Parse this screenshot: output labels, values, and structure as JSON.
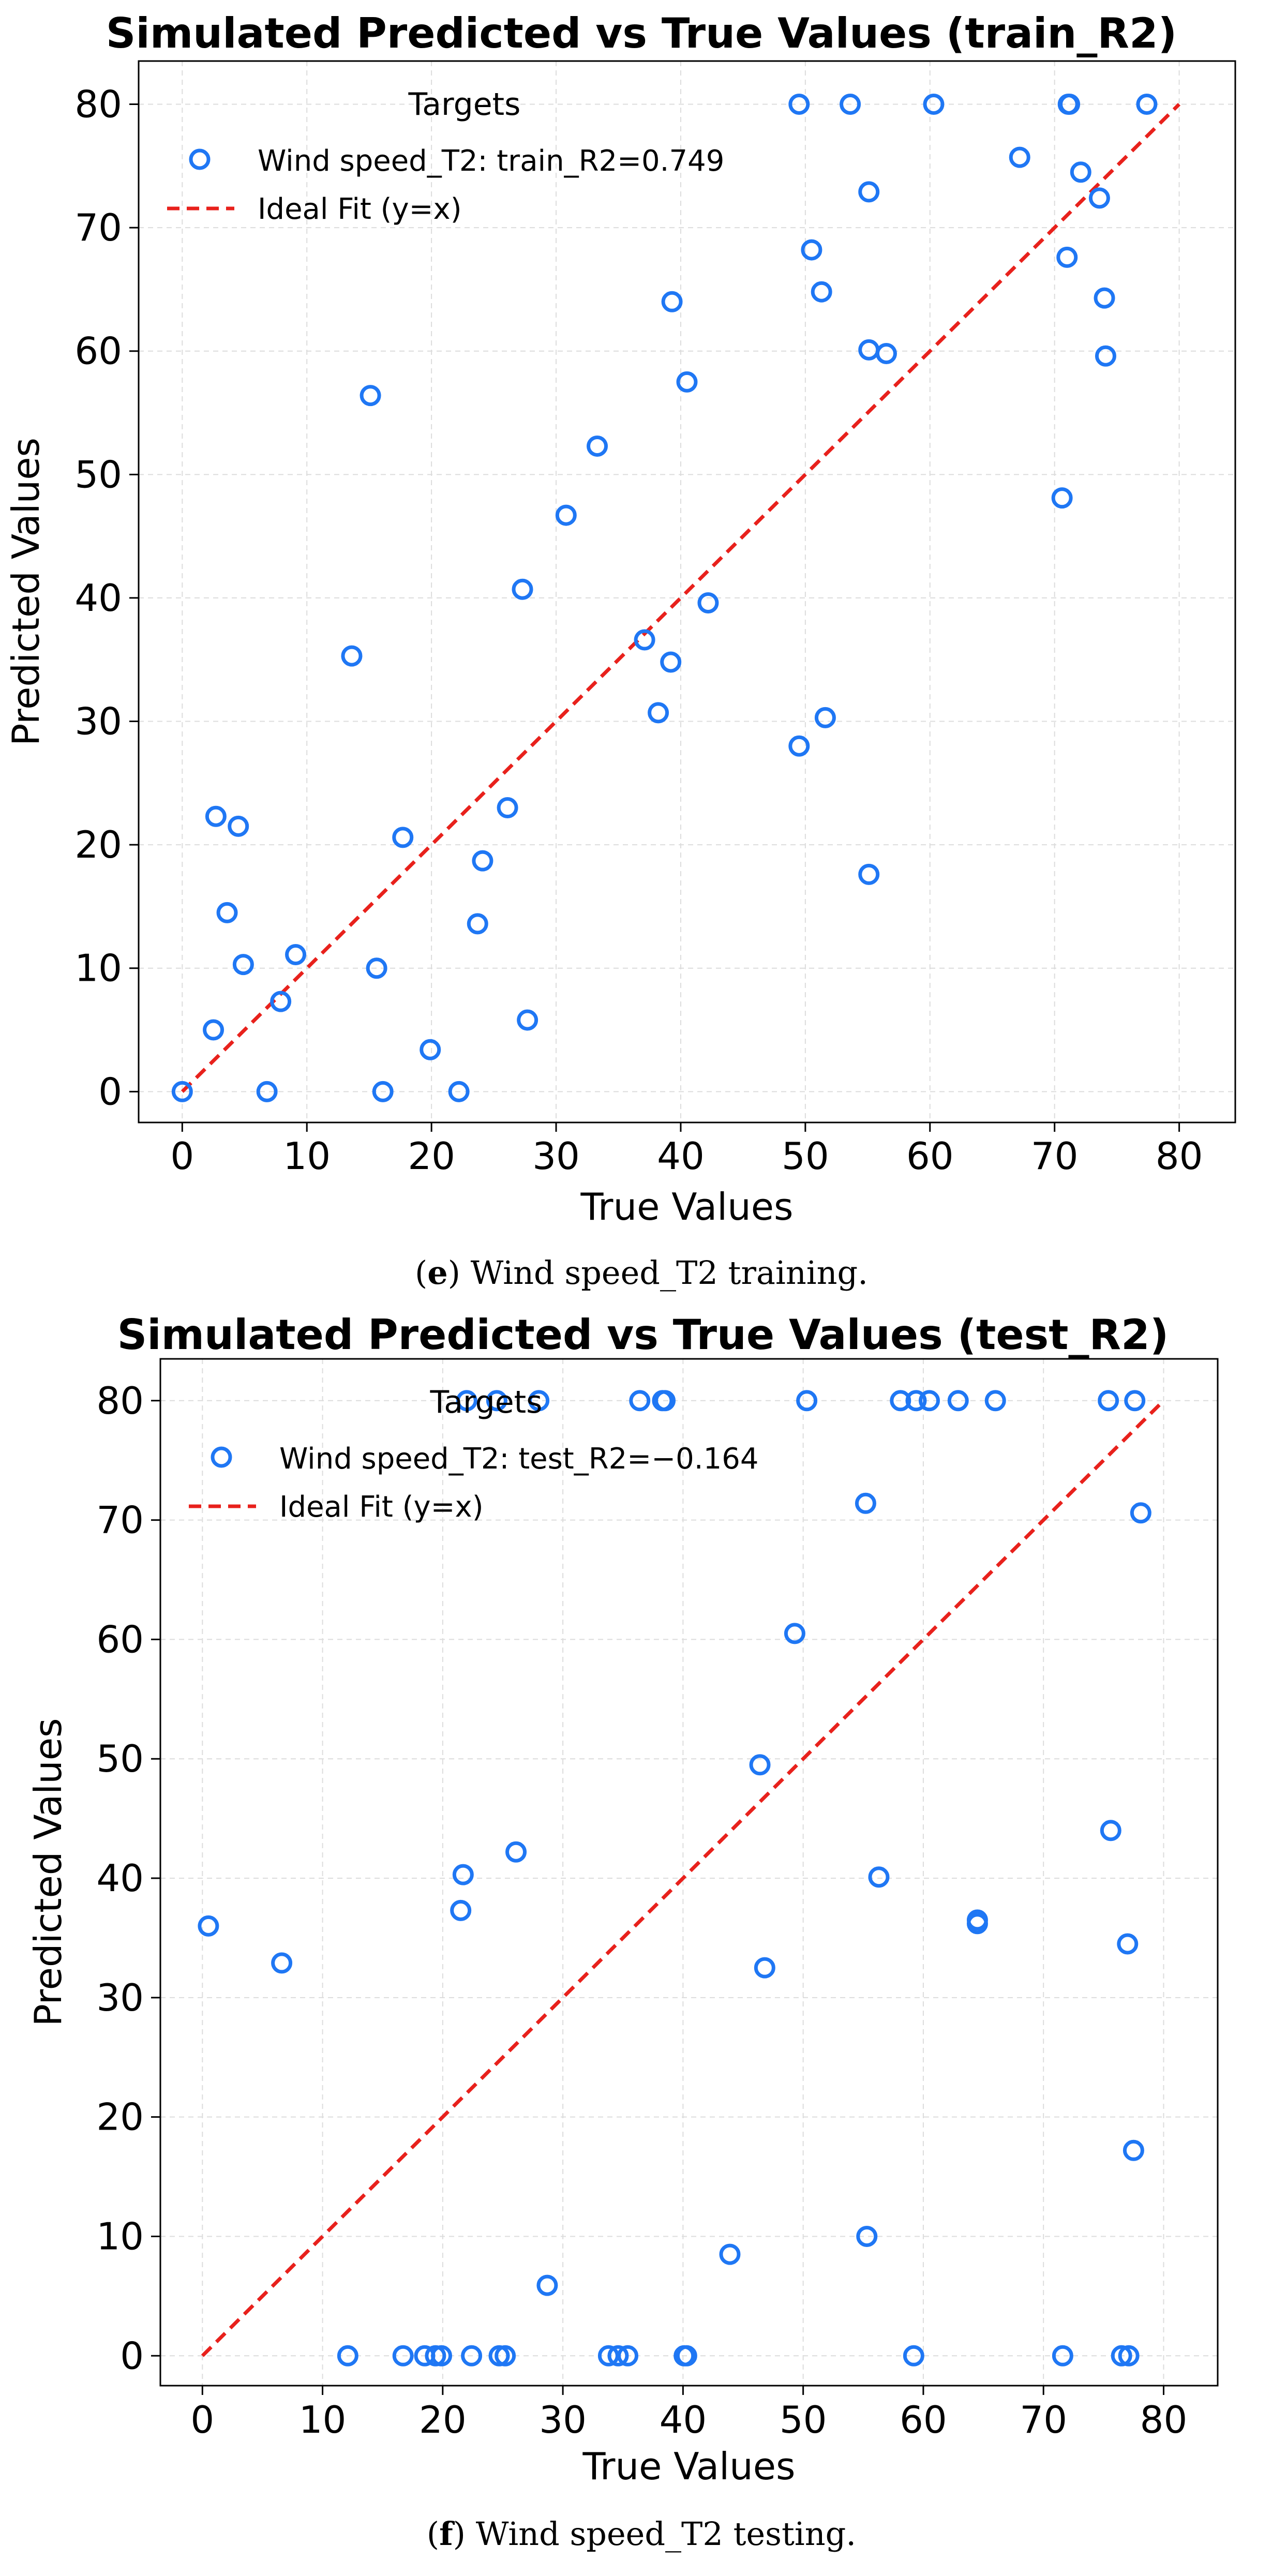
{
  "chart_data": [
    {
      "type": "scatter",
      "title": "Simulated Predicted vs True Values (train_R2)",
      "xlabel": "True Values",
      "ylabel": "Predicted Values",
      "xlim": [
        -3.5,
        84.5
      ],
      "ylim": [
        -2.5,
        83.5
      ],
      "xticks": [
        0,
        10,
        20,
        30,
        40,
        50,
        60,
        70,
        80
      ],
      "yticks": [
        0,
        10,
        20,
        30,
        40,
        50,
        60,
        70,
        80
      ],
      "grid": true,
      "legend": {
        "title": "Targets",
        "placement": "top-left",
        "entries": [
          "Wind speed_T2: train_R2=0.749",
          "Ideal Fit (y=x)"
        ]
      },
      "ideal_fit": {
        "name": "Ideal Fit (y=x)",
        "from": [
          0,
          0
        ],
        "to": [
          80,
          80
        ]
      },
      "caption_label": "e",
      "caption_text": " Wind speed_T2 training.",
      "series": [
        {
          "name": "Wind speed_T2: train_R2=0.749",
          "points": [
            [
              0,
              0
            ],
            [
              2.5,
              5
            ],
            [
              2.7,
              22.3
            ],
            [
              3.6,
              14.5
            ],
            [
              4.5,
              21.5
            ],
            [
              4.9,
              10.3
            ],
            [
              6.8,
              0
            ],
            [
              7.9,
              7.3
            ],
            [
              9.1,
              11.1
            ],
            [
              13.6,
              35.3
            ],
            [
              15.1,
              56.4
            ],
            [
              15.6,
              10
            ],
            [
              16.1,
              0
            ],
            [
              17.7,
              20.6
            ],
            [
              19.9,
              3.4
            ],
            [
              22.2,
              0
            ],
            [
              23.7,
              13.6
            ],
            [
              24.1,
              18.7
            ],
            [
              26.1,
              23
            ],
            [
              27.3,
              40.7
            ],
            [
              27.7,
              5.8
            ],
            [
              30.8,
              46.7
            ],
            [
              33.3,
              52.3
            ],
            [
              37.1,
              36.6
            ],
            [
              38.2,
              30.7
            ],
            [
              39.2,
              34.8
            ],
            [
              39.3,
              64
            ],
            [
              40.5,
              57.5
            ],
            [
              42.2,
              39.6
            ],
            [
              49.5,
              28
            ],
            [
              49.5,
              80
            ],
            [
              50.5,
              68.2
            ],
            [
              51.3,
              64.8
            ],
            [
              51.6,
              30.3
            ],
            [
              53.6,
              80
            ],
            [
              55.1,
              72.9
            ],
            [
              55.1,
              60.1
            ],
            [
              55.1,
              17.6
            ],
            [
              56.5,
              59.8
            ],
            [
              60.3,
              80
            ],
            [
              67.2,
              75.7
            ],
            [
              70.6,
              48.1
            ],
            [
              71,
              67.6
            ],
            [
              71.1,
              80
            ],
            [
              71.2,
              80
            ],
            [
              72.1,
              74.5
            ],
            [
              73.6,
              72.4
            ],
            [
              74,
              64.3
            ],
            [
              74.1,
              59.6
            ],
            [
              77.4,
              80
            ]
          ]
        }
      ]
    },
    {
      "type": "scatter",
      "title": "Simulated Predicted vs True Values (test_R2)",
      "xlabel": "True Values",
      "ylabel": "Predicted Values",
      "xlim": [
        -3.5,
        84.5
      ],
      "ylim": [
        -2.5,
        83.5
      ],
      "xticks": [
        0,
        10,
        20,
        30,
        40,
        50,
        60,
        70,
        80
      ],
      "yticks": [
        0,
        10,
        20,
        30,
        40,
        50,
        60,
        70,
        80
      ],
      "grid": true,
      "legend": {
        "title": "Targets",
        "placement": "top-left",
        "entries": [
          "Wind speed_T2: test_R2=−0.164",
          "Ideal Fit (y=x)"
        ]
      },
      "ideal_fit": {
        "name": "Ideal Fit (y=x)",
        "from": [
          0,
          0
        ],
        "to": [
          80,
          80
        ]
      },
      "caption_label": "f",
      "caption_text": " Wind speed_T2 testing.",
      "series": [
        {
          "name": "Wind speed_T2: test_R2=−0.164",
          "points": [
            [
              0.5,
              36
            ],
            [
              6.6,
              32.9
            ],
            [
              12.1,
              0
            ],
            [
              16.7,
              0
            ],
            [
              18.5,
              0
            ],
            [
              19.4,
              0
            ],
            [
              19.9,
              0
            ],
            [
              21.5,
              37.3
            ],
            [
              21.7,
              40.3
            ],
            [
              22,
              80
            ],
            [
              22.4,
              0
            ],
            [
              24.5,
              80
            ],
            [
              24.7,
              0
            ],
            [
              25.2,
              0
            ],
            [
              26.1,
              42.2
            ],
            [
              28,
              80
            ],
            [
              28.7,
              5.9
            ],
            [
              33.8,
              0
            ],
            [
              34.6,
              0
            ],
            [
              35.4,
              0
            ],
            [
              36.4,
              80
            ],
            [
              38.3,
              80
            ],
            [
              38.5,
              80
            ],
            [
              40.1,
              0
            ],
            [
              40.3,
              0
            ],
            [
              43.9,
              8.5
            ],
            [
              46.4,
              49.5
            ],
            [
              46.8,
              32.5
            ],
            [
              49.3,
              60.5
            ],
            [
              50.3,
              80
            ],
            [
              55.2,
              71.4
            ],
            [
              55.3,
              10
            ],
            [
              56.3,
              40.1
            ],
            [
              58.1,
              80
            ],
            [
              59.2,
              0
            ],
            [
              59.4,
              80
            ],
            [
              60.5,
              80
            ],
            [
              62.9,
              80
            ],
            [
              64.5,
              36.5
            ],
            [
              64.5,
              36.2
            ],
            [
              66,
              80
            ],
            [
              71.6,
              0
            ],
            [
              75.4,
              80
            ],
            [
              75.6,
              44
            ],
            [
              76.5,
              0
            ],
            [
              77,
              34.5
            ],
            [
              77.1,
              0
            ],
            [
              77.5,
              17.2
            ],
            [
              77.6,
              80
            ],
            [
              78.1,
              70.6
            ]
          ]
        }
      ]
    }
  ],
  "colors": {
    "marker": "#1f77f4",
    "ideal_fit": "#e8211c",
    "grid": "#dcdcdc",
    "axes": "#000000",
    "legend_border": "#cccccc"
  }
}
